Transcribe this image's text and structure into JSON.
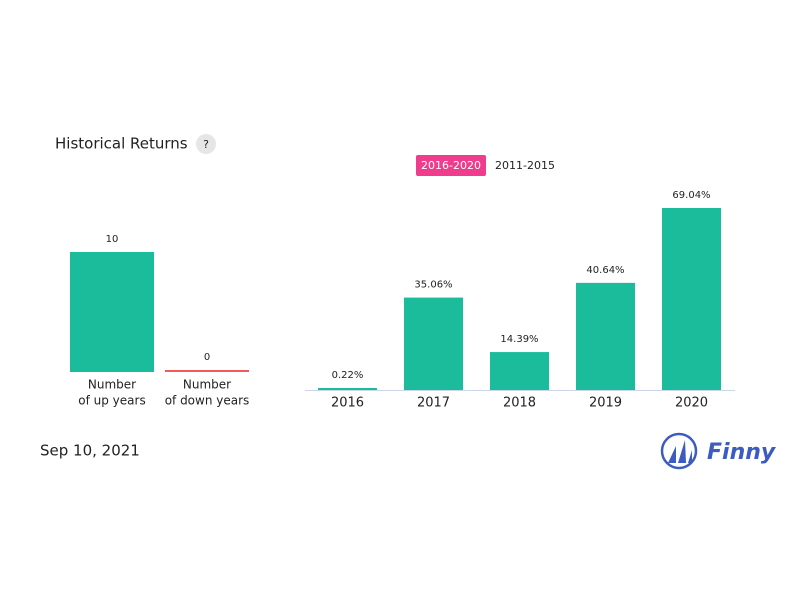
{
  "header": {
    "title": "Historical Returns",
    "help": "?"
  },
  "tabs": [
    "2016-2020",
    "2011-2015"
  ],
  "chart_data": [
    {
      "type": "bar",
      "categories": [
        [
          "Number",
          "of up years"
        ],
        [
          "Number",
          "of down years"
        ]
      ],
      "values": [
        10,
        0
      ],
      "colors": [
        "#1abc9c",
        "#f05a5a"
      ]
    },
    {
      "type": "bar",
      "categories": [
        "2016",
        "2017",
        "2018",
        "2019",
        "2020"
      ],
      "values": [
        0.22,
        35.06,
        14.39,
        40.64,
        69.04
      ],
      "value_labels": [
        "0.22%",
        "35.06%",
        "14.39%",
        "40.64%",
        "69.04%"
      ],
      "color": "#1abc9c"
    }
  ],
  "footer": {
    "date": "Sep 10, 2021",
    "brand": "Finny"
  }
}
